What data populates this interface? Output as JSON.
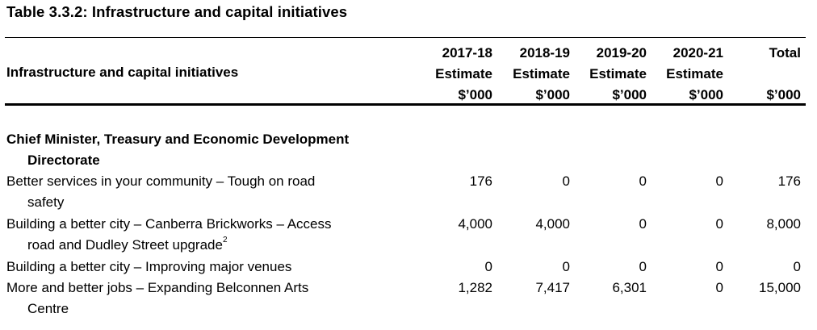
{
  "title": "Table 3.3.2: Infrastructure and capital initiatives",
  "header": {
    "label": "Infrastructure and capital initiatives",
    "columns": [
      {
        "year": "2017-18",
        "sub": "Estimate",
        "unit": "$’000"
      },
      {
        "year": "2018-19",
        "sub": "Estimate",
        "unit": "$’000"
      },
      {
        "year": "2019-20",
        "sub": "Estimate",
        "unit": "$’000"
      },
      {
        "year": "2020-21",
        "sub": "Estimate",
        "unit": "$’000"
      },
      {
        "year": "Total",
        "sub": "",
        "unit": "$’000"
      }
    ]
  },
  "section": {
    "line1": "Chief Minister, Treasury and Economic Development",
    "line2": "Directorate"
  },
  "rows": [
    {
      "line1": "Better services in your community – Tough on road",
      "line2": "safety",
      "sup": "",
      "values": [
        "176",
        "0",
        "0",
        "0",
        "176"
      ]
    },
    {
      "line1": "Building a better city – Canberra Brickworks – Access",
      "line2": "road and Dudley Street upgrade",
      "sup": "2",
      "values": [
        "4,000",
        "4,000",
        "0",
        "0",
        "8,000"
      ]
    },
    {
      "line1": "Building a better city – Improving major venues",
      "line2": "",
      "sup": "",
      "values": [
        "0",
        "0",
        "0",
        "0",
        "0"
      ]
    },
    {
      "line1": "More and better jobs – Expanding Belconnen Arts",
      "line2": "Centre",
      "sup": "",
      "values": [
        "1,282",
        "7,417",
        "6,301",
        "0",
        "15,000"
      ]
    }
  ]
}
